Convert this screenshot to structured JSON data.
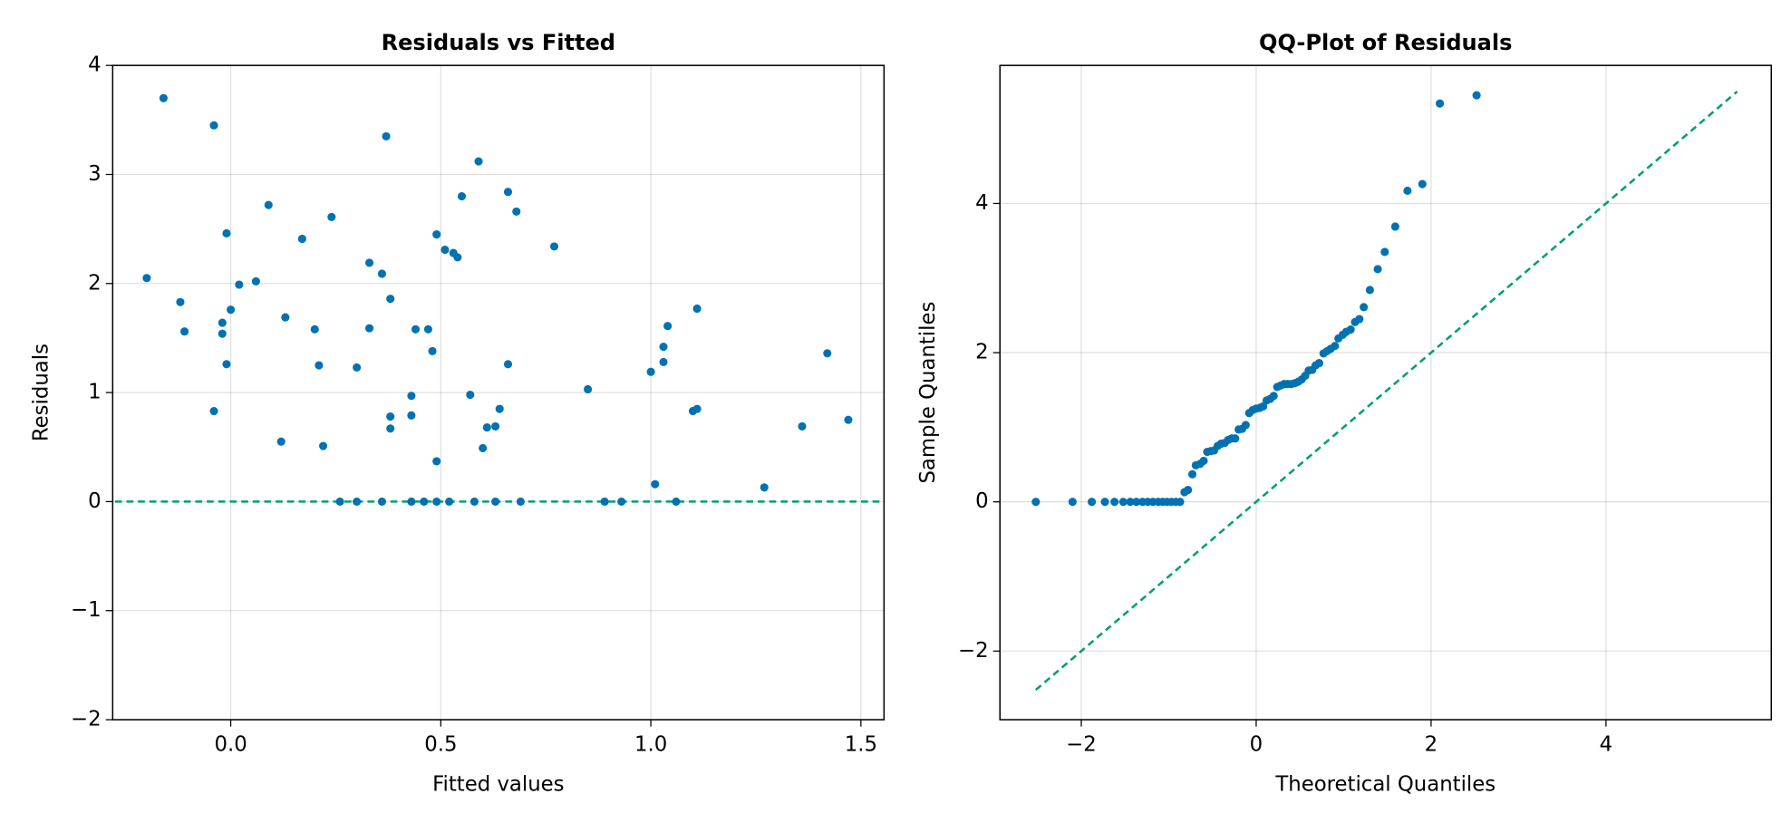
{
  "chart_data": [
    {
      "type": "scatter",
      "title": "Residuals vs Fitted",
      "x_label": "Fitted values",
      "y_label": "Residuals",
      "color": "#0072b2",
      "line_color": "#009e73",
      "grid": true,
      "hline": 0,
      "xlim": [
        -0.281,
        1.555
      ],
      "ylim": [
        -2,
        4
      ],
      "xticks": [
        {
          "value": 0,
          "label": "0.0"
        },
        {
          "value": 0.5,
          "label": "0.5"
        },
        {
          "value": 1,
          "label": "1.0"
        },
        {
          "value": 1.5,
          "label": "1.5"
        }
      ],
      "yticks": [
        {
          "value": -2,
          "label": "−2"
        },
        {
          "value": -1,
          "label": "−1"
        },
        0,
        1,
        2,
        3,
        4
      ],
      "x": [
        -0.2,
        -0.16,
        -0.12,
        -0.11,
        -0.04,
        -0.04,
        -0.02,
        -0.02,
        -0.01,
        -0.01,
        0.0,
        0.02,
        0.06,
        0.09,
        0.12,
        0.13,
        0.17,
        0.2,
        0.21,
        0.22,
        0.24,
        0.26,
        0.3,
        0.3,
        0.33,
        0.33,
        0.36,
        0.36,
        0.37,
        0.38,
        0.38,
        0.38,
        0.43,
        0.43,
        0.43,
        0.44,
        0.46,
        0.47,
        0.48,
        0.49,
        0.49,
        0.49,
        0.51,
        0.52,
        0.53,
        0.54,
        0.55,
        0.57,
        0.58,
        0.59,
        0.6,
        0.61,
        0.63,
        0.63,
        0.64,
        0.66,
        0.66,
        0.68,
        0.69,
        0.77,
        0.85,
        0.89,
        0.93,
        1.0,
        1.01,
        1.03,
        1.03,
        1.04,
        1.06,
        1.1,
        1.11,
        1.11,
        1.27,
        1.36,
        1.42,
        1.47
      ],
      "y": [
        2.05,
        3.7,
        1.83,
        1.56,
        3.45,
        0.83,
        1.64,
        1.54,
        2.46,
        1.26,
        1.76,
        1.99,
        2.02,
        2.72,
        0.55,
        1.69,
        2.41,
        1.58,
        1.25,
        0.51,
        2.61,
        0,
        0,
        1.23,
        2.19,
        1.59,
        2.09,
        0,
        3.35,
        1.86,
        0.78,
        0.67,
        0.97,
        0,
        0.79,
        1.58,
        0,
        1.58,
        1.38,
        0.37,
        2.45,
        0,
        2.31,
        0,
        2.28,
        2.24,
        2.8,
        0.98,
        0,
        3.12,
        0.49,
        0.68,
        0.69,
        0,
        0.85,
        1.26,
        2.84,
        2.66,
        0,
        2.34,
        1.03,
        0,
        0,
        1.19,
        0.16,
        1.42,
        1.28,
        1.61,
        0,
        0.83,
        0.85,
        1.77,
        0.13,
        0.69,
        1.36,
        0.75
      ]
    },
    {
      "type": "scatter",
      "title": "QQ-Plot of Residuals",
      "x_label": "Theoretical Quantiles",
      "y_label": "Sample Quantiles",
      "color": "#0072b2",
      "line_color": "#009e73",
      "grid": true,
      "reference_line": {
        "x": [
          -2.52,
          5.5
        ],
        "y": [
          -2.52,
          5.5
        ]
      },
      "xlim": [
        -2.93,
        5.89
      ],
      "ylim": [
        -2.92,
        5.85
      ],
      "xticks": [
        {
          "value": -2,
          "label": "−2"
        },
        0,
        2,
        4
      ],
      "yticks": [
        {
          "value": -2,
          "label": "−2"
        },
        0,
        2,
        4
      ],
      "x": [
        -2.52,
        -2.1,
        -1.88,
        -1.73,
        -1.62,
        -1.52,
        -1.44,
        -1.37,
        -1.3,
        -1.24,
        -1.18,
        -1.12,
        -1.07,
        -1.02,
        -0.97,
        -0.92,
        -0.87,
        -0.82,
        -0.78,
        -0.73,
        -0.69,
        -0.64,
        -0.6,
        -0.56,
        -0.52,
        -0.48,
        -0.44,
        -0.4,
        -0.36,
        -0.32,
        -0.28,
        -0.24,
        -0.2,
        -0.16,
        -0.12,
        -0.08,
        -0.04,
        0.0,
        0.04,
        0.08,
        0.12,
        0.16,
        0.2,
        0.24,
        0.28,
        0.32,
        0.36,
        0.4,
        0.44,
        0.48,
        0.52,
        0.56,
        0.6,
        0.64,
        0.68,
        0.72,
        0.77,
        0.81,
        0.85,
        0.9,
        0.94,
        0.99,
        1.03,
        1.08,
        1.13,
        1.18,
        1.23,
        1.3,
        1.39,
        1.47,
        1.59,
        1.73,
        1.9,
        2.1,
        2.52
      ],
      "y": [
        0,
        0,
        0,
        0,
        0,
        0,
        0,
        0,
        0,
        0,
        0,
        0,
        0,
        0,
        0,
        0,
        0,
        0.13,
        0.16,
        0.37,
        0.49,
        0.51,
        0.55,
        0.67,
        0.68,
        0.69,
        0.75,
        0.78,
        0.79,
        0.83,
        0.85,
        0.85,
        0.97,
        0.98,
        1.03,
        1.19,
        1.23,
        1.25,
        1.26,
        1.28,
        1.36,
        1.38,
        1.42,
        1.54,
        1.56,
        1.58,
        1.58,
        1.58,
        1.59,
        1.61,
        1.64,
        1.69,
        1.76,
        1.77,
        1.83,
        1.86,
        1.99,
        2.02,
        2.05,
        2.09,
        2.19,
        2.24,
        2.28,
        2.31,
        2.41,
        2.45,
        2.61,
        2.84,
        3.12,
        3.35,
        3.69,
        4.17,
        4.26,
        5.34,
        5.45
      ]
    }
  ]
}
